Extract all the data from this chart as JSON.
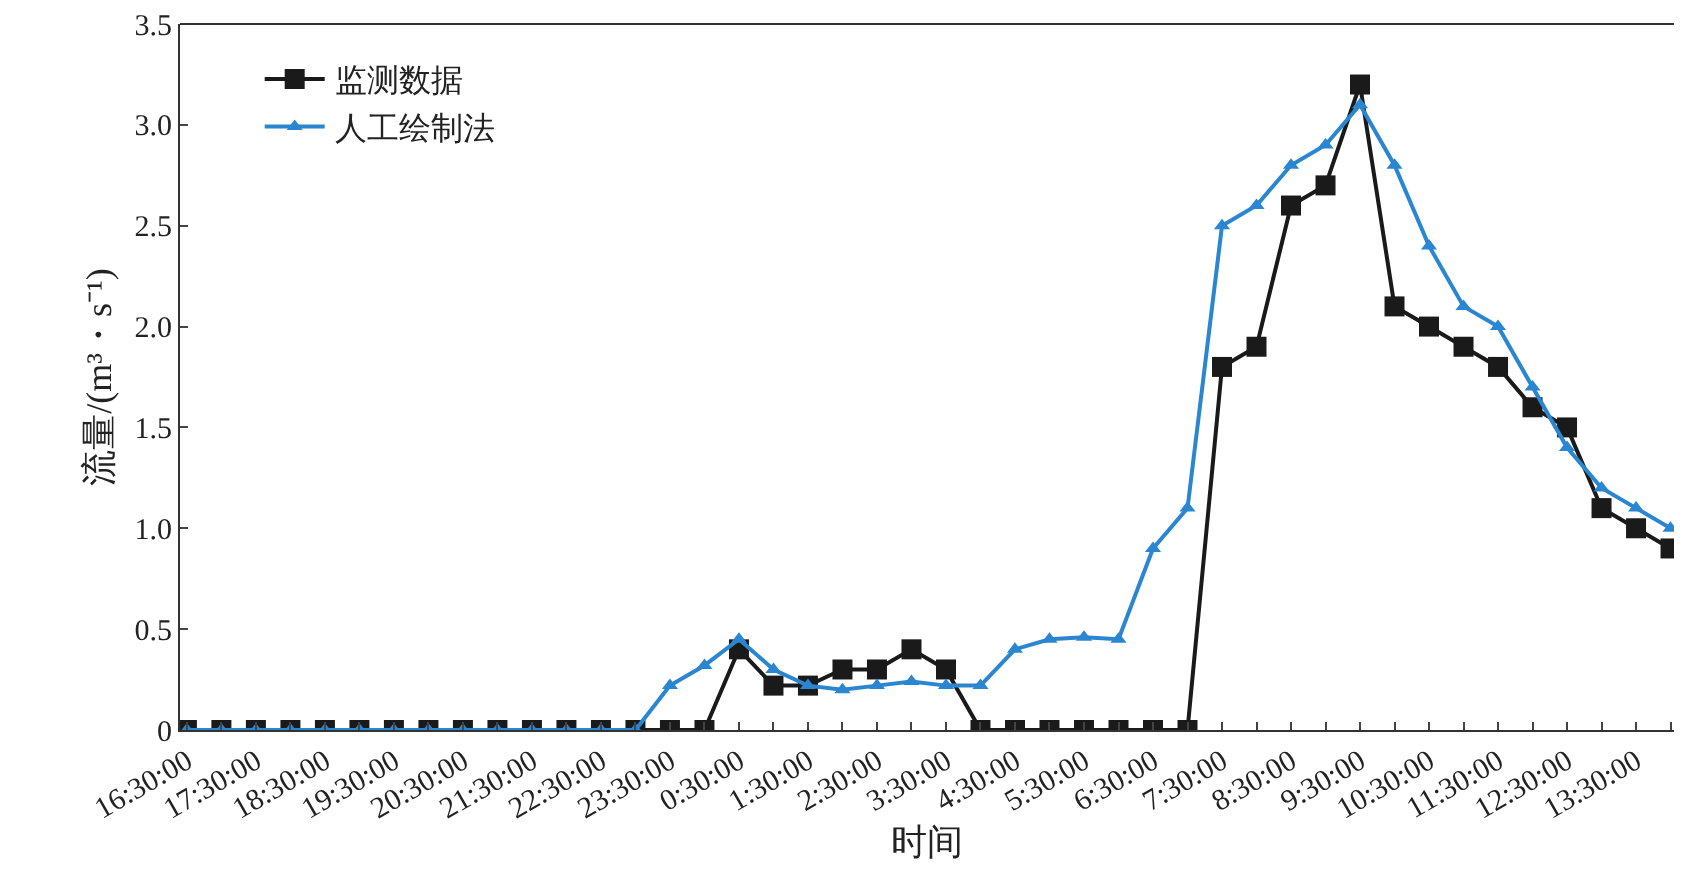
{
  "chart_data": {
    "type": "line",
    "xlabel": "时间",
    "ylabel": "流量/(m³・s⁻¹)",
    "categories": [
      "16:30:00",
      null,
      "17:30:00",
      null,
      "18:30:00",
      null,
      "19:30:00",
      null,
      "20:30:00",
      null,
      "21:30:00",
      null,
      "22:30:00",
      null,
      "23:30:00",
      null,
      "0:30:00",
      null,
      "1:30:00",
      null,
      "2:30:00",
      null,
      "3:30:00",
      null,
      "4:30:00",
      null,
      "5:30:00",
      null,
      "6:30:00",
      null,
      "7:30:00",
      null,
      "8:30:00",
      null,
      "9:30:00",
      null,
      "10:30:00",
      null,
      "11:30:00",
      null,
      "12:30:00",
      null,
      "13:30:00",
      null
    ],
    "series": [
      {
        "name": "监测数据",
        "color": "#1a1a1a",
        "marker": "square",
        "values": [
          0,
          0,
          0,
          0,
          0,
          0,
          0,
          0,
          0,
          0,
          0,
          0,
          0,
          0,
          0,
          0,
          0.4,
          0.22,
          0.22,
          0.3,
          0.3,
          0.4,
          0.3,
          0,
          0,
          0,
          0,
          0,
          0,
          0,
          1.8,
          1.9,
          2.6,
          2.7,
          3.2,
          2.1,
          2.0,
          1.9,
          1.8,
          1.6,
          1.5,
          1.1,
          1.0,
          0.9
        ]
      },
      {
        "name": "人工绘制法",
        "color": "#2a86d0",
        "marker": "triangle",
        "values": [
          0,
          0,
          0,
          0,
          0,
          0,
          0,
          0,
          0,
          0,
          0,
          0,
          0,
          0,
          0.22,
          0.32,
          0.45,
          0.3,
          0.22,
          0.2,
          0.22,
          0.24,
          0.22,
          0.22,
          0.4,
          0.45,
          0.46,
          0.45,
          0.9,
          1.1,
          2.5,
          2.6,
          2.8,
          2.9,
          3.1,
          2.8,
          2.4,
          2.1,
          2.0,
          1.7,
          1.4,
          1.2,
          1.1,
          1.0
        ]
      }
    ],
    "ylim": [
      0,
      3.5
    ],
    "yticks": [
      0,
      0.5,
      {
        "value": 1,
        "label": "1.0"
      },
      1.5,
      {
        "value": 2,
        "label": "2.0"
      },
      2.5,
      {
        "value": 3,
        "label": "3.0"
      },
      3.5
    ],
    "legend": "top left",
    "line_style": "solid"
  }
}
